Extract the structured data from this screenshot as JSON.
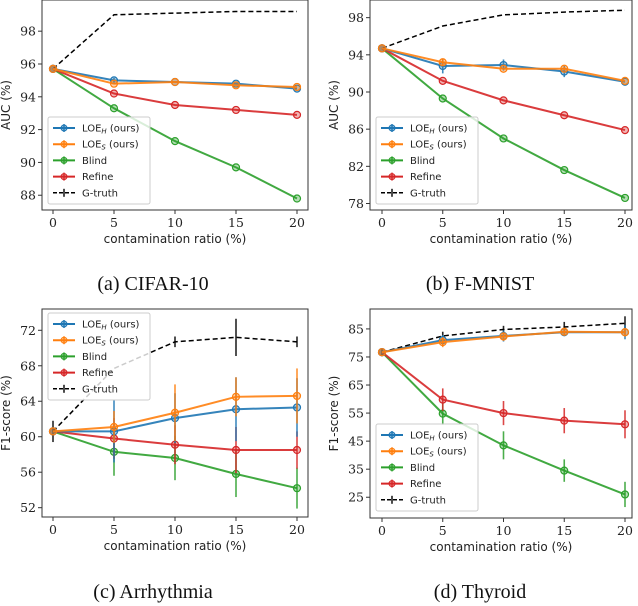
{
  "chart_data": [
    {
      "type": "line",
      "caption": "(a) CIFAR-10",
      "xlabel": "contamination ratio (%)",
      "ylabel": "AUC (%)",
      "x": [
        0,
        5,
        10,
        15,
        20
      ],
      "xticks": [
        0,
        5,
        10,
        15,
        20
      ],
      "yticks": [
        88,
        90,
        92,
        94,
        96,
        98
      ],
      "xlim": [
        -1,
        21
      ],
      "ylim": [
        87.1,
        99.9
      ],
      "legend": "lower-left",
      "grid": false,
      "series": [
        {
          "name": "G-truth",
          "color": "#000000",
          "dashed": true,
          "values": [
            95.7,
            99.0,
            99.1,
            99.2,
            99.2
          ],
          "err": [
            0,
            0,
            0,
            0,
            0
          ]
        },
        {
          "name": "Blind",
          "color": "#2ca02c",
          "values": [
            95.7,
            93.3,
            91.3,
            89.7,
            87.8
          ],
          "err": [
            0,
            0,
            0,
            0,
            0
          ]
        },
        {
          "name": "Refine",
          "color": "#d62728",
          "values": [
            95.7,
            94.2,
            93.5,
            93.2,
            92.9
          ],
          "err": [
            0,
            0,
            0,
            0,
            0
          ]
        },
        {
          "name": "LOE_H (ours)",
          "color": "#1f77b4",
          "values": [
            95.7,
            95.0,
            94.9,
            94.8,
            94.5
          ],
          "err": [
            0,
            0.15,
            0,
            0,
            0
          ]
        },
        {
          "name": "LOE_S (ours)",
          "color": "#ff7f0e",
          "values": [
            95.7,
            94.8,
            94.9,
            94.7,
            94.6
          ],
          "err": [
            0,
            0,
            0,
            0,
            0
          ]
        }
      ],
      "legend_order": [
        "LOE_H (ours)",
        "LOE_S (ours)",
        "Blind",
        "Refine",
        "G-truth"
      ]
    },
    {
      "type": "line",
      "caption": "(b) F-MNIST",
      "xlabel": "contamination ratio (%)",
      "ylabel": "AUC (%)",
      "x": [
        0,
        5,
        10,
        15,
        20
      ],
      "xticks": [
        0,
        5,
        10,
        15,
        20
      ],
      "yticks": [
        78,
        82,
        86,
        90,
        94,
        98
      ],
      "xlim": [
        -1,
        21
      ],
      "ylim": [
        77.3,
        99.9
      ],
      "legend": "lower-left",
      "grid": false,
      "series": [
        {
          "name": "G-truth",
          "color": "#000000",
          "dashed": true,
          "values": [
            94.7,
            97.1,
            98.3,
            98.6,
            98.8
          ],
          "err": [
            0,
            0,
            0,
            0,
            0
          ]
        },
        {
          "name": "Blind",
          "color": "#2ca02c",
          "values": [
            94.7,
            89.3,
            85.0,
            81.6,
            78.6
          ],
          "err": [
            0,
            0,
            0,
            0,
            0
          ]
        },
        {
          "name": "Refine",
          "color": "#d62728",
          "values": [
            94.7,
            91.2,
            89.1,
            87.5,
            85.9
          ],
          "err": [
            0,
            0,
            0,
            0,
            0
          ]
        },
        {
          "name": "LOE_H (ours)",
          "color": "#1f77b4",
          "values": [
            94.7,
            92.8,
            92.9,
            92.2,
            91.1
          ],
          "err": [
            0,
            0.8,
            0.6,
            0.6,
            0
          ]
        },
        {
          "name": "LOE_S (ours)",
          "color": "#ff7f0e",
          "values": [
            94.7,
            93.2,
            92.5,
            92.5,
            91.2
          ],
          "err": [
            0,
            0.3,
            0,
            0.2,
            0
          ]
        }
      ],
      "legend_order": [
        "LOE_H (ours)",
        "LOE_S (ours)",
        "Blind",
        "Refine",
        "G-truth"
      ]
    },
    {
      "type": "line",
      "caption": "(c) Arrhythmia",
      "xlabel": "contamination ratio (%)",
      "ylabel": "F1-score (%)",
      "x": [
        0,
        5,
        10,
        15,
        20
      ],
      "xticks": [
        0,
        5,
        10,
        15,
        20
      ],
      "yticks": [
        52,
        56,
        60,
        64,
        68,
        72
      ],
      "xlim": [
        -1,
        21
      ],
      "ylim": [
        50.95,
        74.4
      ],
      "legend": "upper-left",
      "grid": false,
      "series": [
        {
          "name": "G-truth",
          "color": "#000000",
          "dashed": true,
          "values": [
            60.6,
            67.7,
            70.7,
            71.2,
            70.7
          ],
          "err": [
            1.2,
            0,
            0.6,
            2.1,
            0.6
          ]
        },
        {
          "name": "Blind",
          "color": "#2ca02c",
          "values": [
            60.6,
            58.3,
            57.6,
            55.8,
            54.2
          ],
          "err": [
            0,
            2.7,
            2.5,
            2.6,
            2.3
          ]
        },
        {
          "name": "Refine",
          "color": "#d62728",
          "values": [
            60.6,
            59.8,
            59.1,
            58.5,
            58.5
          ],
          "err": [
            0,
            2.3,
            2.2,
            2.6,
            2.1
          ]
        },
        {
          "name": "LOE_H (ours)",
          "color": "#1f77b4",
          "values": [
            60.6,
            60.6,
            62.1,
            63.1,
            63.3
          ],
          "err": [
            0,
            3.5,
            2.8,
            3.6,
            3.3
          ]
        },
        {
          "name": "LOE_S (ours)",
          "color": "#ff7f0e",
          "values": [
            60.6,
            61.1,
            62.7,
            64.5,
            64.6
          ],
          "err": [
            0,
            1.8,
            3.2,
            2.2,
            3.1
          ]
        }
      ],
      "legend_order": [
        "LOE_H (ours)",
        "LOE_S (ours)",
        "Blind",
        "Refine",
        "G-truth"
      ]
    },
    {
      "type": "line",
      "caption": "(d) Thyroid",
      "xlabel": "contamination ratio (%)",
      "ylabel": "F1-score (%)",
      "x": [
        0,
        5,
        10,
        15,
        20
      ],
      "xticks": [
        0,
        5,
        10,
        15,
        20
      ],
      "yticks": [
        25,
        35,
        45,
        55,
        65,
        75,
        85
      ],
      "xlim": [
        -1,
        21
      ],
      "ylim": [
        17.6,
        92.1
      ],
      "legend": "lower-left",
      "grid": false,
      "series": [
        {
          "name": "G-truth",
          "color": "#000000",
          "dashed": true,
          "values": [
            76.7,
            82.5,
            84.8,
            85.7,
            87.0
          ],
          "err": [
            1.0,
            1.5,
            1.3,
            1.8,
            2.5
          ]
        },
        {
          "name": "Blind",
          "color": "#2ca02c",
          "values": [
            76.7,
            54.8,
            43.5,
            34.5,
            26.0
          ],
          "err": [
            0,
            4.0,
            5.0,
            4.0,
            4.5
          ]
        },
        {
          "name": "Refine",
          "color": "#d62728",
          "values": [
            76.7,
            59.8,
            55.0,
            52.3,
            51.0
          ],
          "err": [
            0,
            4.0,
            4.3,
            4.5,
            5.0
          ]
        },
        {
          "name": "LOE_H (ours)",
          "color": "#1f77b4",
          "values": [
            76.7,
            81.0,
            82.5,
            83.8,
            83.8
          ],
          "err": [
            0,
            1.8,
            2.0,
            1.2,
            2.5
          ]
        },
        {
          "name": "LOE_S (ours)",
          "color": "#ff7f0e",
          "values": [
            76.7,
            80.3,
            82.3,
            84.0,
            83.8
          ],
          "err": [
            0,
            1.8,
            1.5,
            1.2,
            1.5
          ]
        }
      ],
      "legend_order": [
        "LOE_H (ours)",
        "LOE_S (ours)",
        "Blind",
        "Refine",
        "G-truth"
      ]
    }
  ]
}
